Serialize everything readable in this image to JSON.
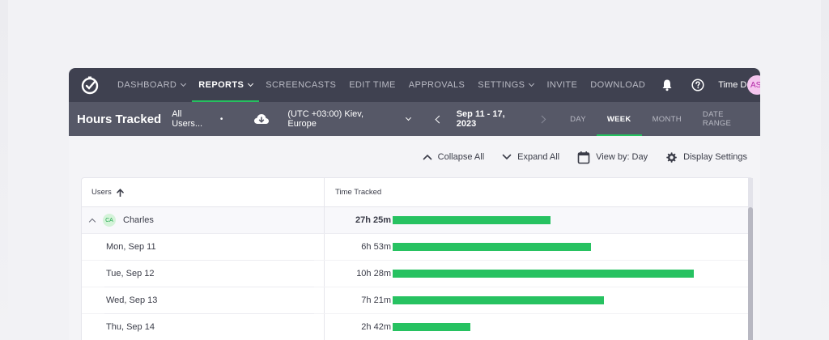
{
  "nav": {
    "items": [
      {
        "label": "DASHBOARD",
        "dropdown": true,
        "active": false
      },
      {
        "label": "REPORTS",
        "dropdown": true,
        "active": true
      },
      {
        "label": "SCREENCASTS",
        "dropdown": false,
        "active": false
      },
      {
        "label": "EDIT TIME",
        "dropdown": false,
        "active": false
      },
      {
        "label": "APPROVALS",
        "dropdown": false,
        "active": false
      },
      {
        "label": "SETTINGS",
        "dropdown": true,
        "active": false
      },
      {
        "label": "INVITE",
        "dropdown": false,
        "active": false
      },
      {
        "label": "DOWNLOAD",
        "dropdown": false,
        "active": false
      }
    ],
    "company": "Time Doctor O...",
    "avatar_initials": "AS"
  },
  "subbar": {
    "title": "Hours Tracked",
    "user_filter": "All Users...",
    "user_filter_dot": "•",
    "timezone": "(UTC +03:00) Kiev, Europe",
    "date_range": "Sep 11 - 17, 2023",
    "ranges": [
      {
        "label": "DAY",
        "active": false
      },
      {
        "label": "WEEK",
        "active": true
      },
      {
        "label": "MONTH",
        "active": false
      },
      {
        "label": "DATE RANGE",
        "active": false
      }
    ]
  },
  "toolbar": {
    "collapse_all": "Collapse All",
    "expand_all": "Expand All",
    "view_by": "View by: Day",
    "display_settings": "Display Settings"
  },
  "table": {
    "col_users": "Users",
    "col_time": "Time Tracked",
    "rows": [
      {
        "type": "parent",
        "initials": "CA",
        "name": "Charles",
        "duration": "27h 25m",
        "bar_fraction": 0.4875
      },
      {
        "type": "sub",
        "name": "Mon, Sep 11",
        "duration": "6h 53m",
        "bar_fraction": 0.6125
      },
      {
        "type": "sub",
        "name": "Tue, Sep 12",
        "duration": "10h 28m",
        "bar_fraction": 0.93
      },
      {
        "type": "sub",
        "name": "Wed, Sep 13",
        "duration": "7h 21m",
        "bar_fraction": 0.6525
      },
      {
        "type": "sub",
        "name": "Thu, Sep 14",
        "duration": "2h 42m",
        "bar_fraction": 0.24
      }
    ]
  },
  "colors": {
    "accent": "#27c261",
    "nav_bg": "#3f4150",
    "subbar_bg": "#565867"
  }
}
